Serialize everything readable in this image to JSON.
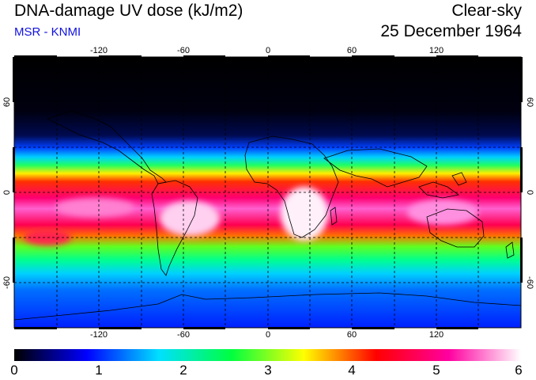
{
  "header": {
    "title": "DNA-damage UV dose (kJ/m2)",
    "subtitle": "MSR - KNMI",
    "mode": "Clear-sky",
    "date": "25 December 1964"
  },
  "map": {
    "lon_ticks": [
      "-120",
      "-60",
      "0",
      "60",
      "120"
    ],
    "lat_ticks": [
      "60",
      "0",
      "-60"
    ],
    "graticule": "dashed",
    "projection": "equirectangular"
  },
  "colorbar": {
    "labels": [
      "0",
      "1",
      "2",
      "3",
      "4",
      "5",
      "6"
    ],
    "colors": [
      "#000000",
      "#0000ff",
      "#00e0ff",
      "#00ff40",
      "#ffff00",
      "#ff0000",
      "#ff00a0",
      "#ffffff"
    ]
  }
}
